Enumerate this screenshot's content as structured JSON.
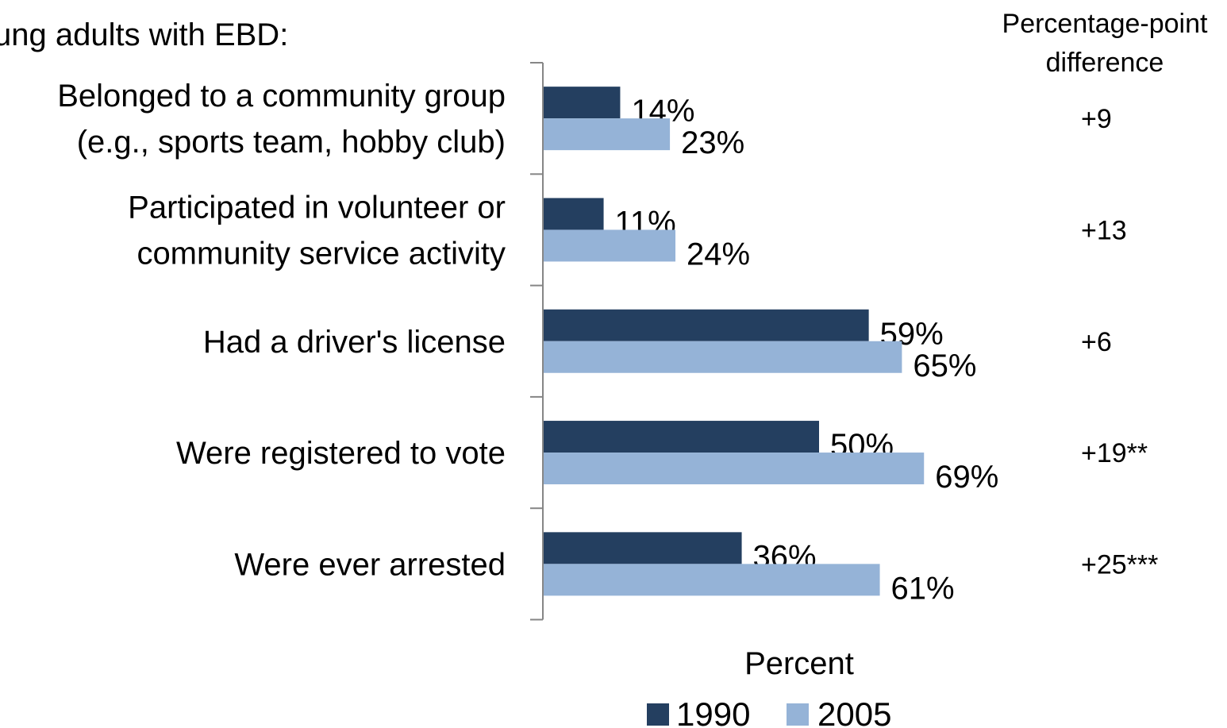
{
  "intro_text": "ung adults with EBD:",
  "diff_header": [
    "Percentage-point",
    "difference"
  ],
  "chart_data": {
    "type": "bar",
    "orientation": "horizontal",
    "categories": [
      [
        "Belonged to a community group",
        "(e.g., sports team, hobby club)"
      ],
      [
        "Participated in volunteer or",
        "community service activity"
      ],
      [
        "Had a driver's license"
      ],
      [
        "Were registered to vote"
      ],
      [
        "Were ever arrested"
      ]
    ],
    "series": [
      {
        "name": "1990",
        "values": [
          14,
          11,
          59,
          50,
          36
        ],
        "labels": [
          "14%",
          "11%",
          "59%",
          "50%",
          "36%"
        ],
        "color": "#243F60"
      },
      {
        "name": "2005",
        "values": [
          23,
          24,
          65,
          69,
          61
        ],
        "labels": [
          "23%",
          "24%",
          "65%",
          "69%",
          "61%"
        ],
        "color": "#95B3D7"
      }
    ],
    "differences": [
      "+9",
      "+13",
      "+6",
      "+19**",
      "+25***"
    ],
    "xlabel": "Percent",
    "xlim": [
      0,
      100
    ],
    "legend_position": "bottom",
    "grid": false
  }
}
